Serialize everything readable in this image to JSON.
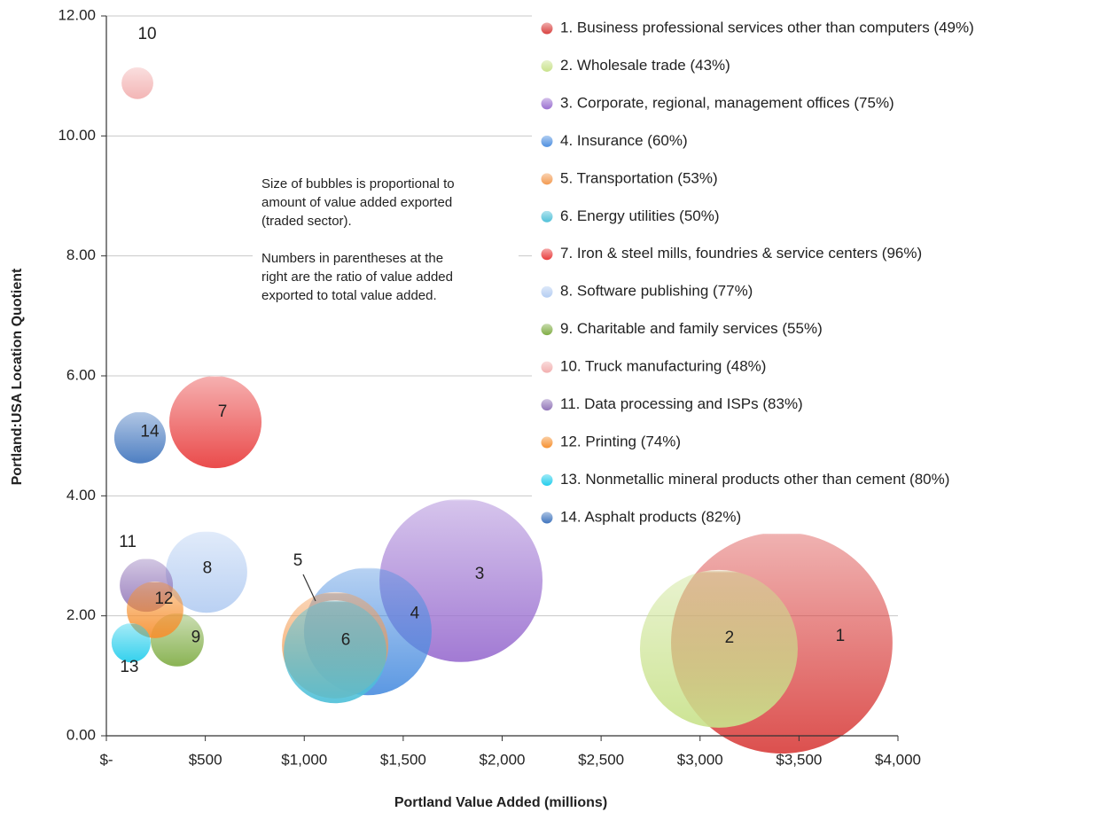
{
  "chart_data": {
    "type": "bubble",
    "x_label": "Portland Value Added (millions)",
    "y_label": "Portland:USA Location Quotient",
    "annotation": [
      [
        "Size of bubbles is proportional to",
        "amount of value added exported",
        "(traded sector)."
      ],
      [
        "Numbers in parentheses at the",
        "right are the ratio of value added",
        "exported to total value added."
      ]
    ],
    "xlim": [
      0,
      4000
    ],
    "xticks": [
      {
        "value": 0,
        "label": "$-"
      },
      {
        "value": 500,
        "label": "$500"
      },
      {
        "value": 1000,
        "label": "$1,000"
      },
      {
        "value": 1500,
        "label": "$1,500"
      },
      {
        "value": 2000,
        "label": "$2,000"
      },
      {
        "value": 2500,
        "label": "$2,500"
      },
      {
        "value": 3000,
        "label": "$3,000"
      },
      {
        "value": 3500,
        "label": "$3,500"
      },
      {
        "value": 4000,
        "label": "$4,000"
      }
    ],
    "ylim": [
      0,
      12
    ],
    "yticks": [
      {
        "value": 0,
        "label": "0.00"
      },
      {
        "value": 2,
        "label": "2.00"
      },
      {
        "value": 4,
        "label": "4.00"
      },
      {
        "value": 6,
        "label": "6.00"
      },
      {
        "value": 8,
        "label": "8.00"
      },
      {
        "value": 10,
        "label": "10.00"
      },
      {
        "value": 12,
        "label": "12.00"
      }
    ],
    "grid": true,
    "legend": "right",
    "series": [
      {
        "name": "1. Business professional services other than computers (49%)",
        "label": "1",
        "color": "#d9413f",
        "x": [
          3413
        ],
        "values": [
          1.55
        ],
        "sizes": [
          1700
        ]
      },
      {
        "name": "2. Wholesale trade (43%)",
        "label": "2",
        "color": "#c9e28c",
        "x": [
          3095
        ],
        "values": [
          1.45
        ],
        "sizes": [
          863
        ]
      },
      {
        "name": "3. Corporate, regional, management offices (75%)",
        "label": "3",
        "color": "#9a6fd0",
        "x": [
          1792
        ],
        "values": [
          2.59
        ],
        "sizes": [
          922
        ]
      },
      {
        "name": "4. Insurance (60%)",
        "label": "4",
        "color": "#4d8fe0",
        "x": [
          1321
        ],
        "values": [
          1.74
        ],
        "sizes": [
          565
        ]
      },
      {
        "name": "5. Transportation (53%)",
        "label": "5",
        "color": "#f39a50",
        "x": [
          1156
        ],
        "values": [
          1.51
        ],
        "sizes": [
          392
        ]
      },
      {
        "name": "6. Energy utilities (50%)",
        "label": "6",
        "color": "#4fc0d8",
        "x": [
          1156
        ],
        "values": [
          1.4
        ],
        "sizes": [
          366
        ]
      },
      {
        "name": "7. Iron & steel mills, foundries & service centers (96%)",
        "label": "7",
        "color": "#e83c3c",
        "x": [
          551
        ],
        "values": [
          5.23
        ],
        "sizes": [
          295
        ]
      },
      {
        "name": "8. Software publishing (77%)",
        "label": "8",
        "color": "#b4cdf2",
        "x": [
          506
        ],
        "values": [
          2.73
        ],
        "sizes": [
          230
        ]
      },
      {
        "name": "9. Charitable and family services (55%)",
        "label": "9",
        "color": "#80ad45",
        "x": [
          358
        ],
        "values": [
          1.6
        ],
        "sizes": [
          98
        ]
      },
      {
        "name": "10. Truck manufacturing (48%)",
        "label": "10",
        "color": "#f2afaf",
        "x": [
          157
        ],
        "values": [
          10.88
        ],
        "sizes": [
          35
        ]
      },
      {
        "name": "11. Data processing and ISPs (83%)",
        "label": "11",
        "color": "#9174b8",
        "x": [
          202
        ],
        "values": [
          2.51
        ],
        "sizes": [
          98
        ]
      },
      {
        "name": "12. Printing (74%)",
        "label": "12",
        "color": "#f6902f",
        "x": [
          246
        ],
        "values": [
          2.1
        ],
        "sizes": [
          111
        ]
      },
      {
        "name": "13. Nonmetallic mineral products other than cement (80%)",
        "label": "13",
        "color": "#22cdec",
        "x": [
          125
        ],
        "values": [
          1.55
        ],
        "sizes": [
          53
        ]
      },
      {
        "name": "14. Asphalt products (82%)",
        "label": "14",
        "color": "#3f74bd",
        "x": [
          170
        ],
        "values": [
          4.97
        ],
        "sizes": [
          92
        ]
      }
    ]
  }
}
